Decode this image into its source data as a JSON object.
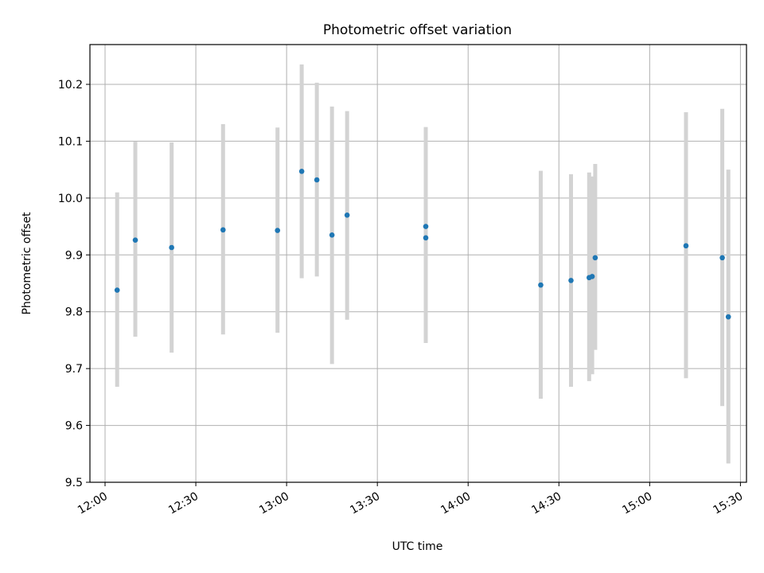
{
  "chart_data": {
    "type": "scatter",
    "title": "Photometric offset variation",
    "xlabel": "UTC time",
    "ylabel": "Photometric offset",
    "xlim": [
      "11:55",
      "15:32"
    ],
    "ylim": [
      9.5,
      10.27
    ],
    "grid": true,
    "x_ticks": [
      "12:00",
      "12:30",
      "13:00",
      "13:30",
      "14:00",
      "14:30",
      "15:00",
      "15:30"
    ],
    "y_ticks": [
      9.5,
      9.6,
      9.7,
      9.8,
      9.9,
      10.0,
      10.1,
      10.2
    ],
    "y_tick_labels": [
      "9.5",
      "9.6",
      "9.7",
      "9.8",
      "9.9",
      "10.0",
      "10.1",
      "10.2"
    ],
    "colors": {
      "marker": "#1f77b4",
      "errorbar": "#d3d3d3",
      "grid": "#b0b0b0"
    },
    "points": [
      {
        "x": "12:04",
        "y": 9.838,
        "err_low": 9.668,
        "err_high": 10.01
      },
      {
        "x": "12:10",
        "y": 9.926,
        "err_low": 9.756,
        "err_high": 10.099
      },
      {
        "x": "12:22",
        "y": 9.913,
        "err_low": 9.728,
        "err_high": 10.098
      },
      {
        "x": "12:39",
        "y": 9.944,
        "err_low": 9.76,
        "err_high": 10.13
      },
      {
        "x": "12:57",
        "y": 9.943,
        "err_low": 9.763,
        "err_high": 10.124
      },
      {
        "x": "13:05",
        "y": 10.047,
        "err_low": 9.859,
        "err_high": 10.235
      },
      {
        "x": "13:10",
        "y": 10.032,
        "err_low": 9.862,
        "err_high": 10.203
      },
      {
        "x": "13:15",
        "y": 9.935,
        "err_low": 9.708,
        "err_high": 10.161
      },
      {
        "x": "13:20",
        "y": 9.97,
        "err_low": 9.786,
        "err_high": 10.153
      },
      {
        "x": "13:46",
        "y": 9.95,
        "err_low": 9.78,
        "err_high": 10.125
      },
      {
        "x": "13:46",
        "y": 9.93,
        "err_low": 9.745,
        "err_high": 10.116
      },
      {
        "x": "14:24",
        "y": 9.847,
        "err_low": 9.647,
        "err_high": 10.048
      },
      {
        "x": "14:34",
        "y": 9.855,
        "err_low": 9.668,
        "err_high": 10.042
      },
      {
        "x": "14:40",
        "y": 9.86,
        "err_low": 9.678,
        "err_high": 10.045
      },
      {
        "x": "14:41",
        "y": 9.862,
        "err_low": 9.69,
        "err_high": 10.038
      },
      {
        "x": "14:42",
        "y": 9.895,
        "err_low": 9.733,
        "err_high": 10.06
      },
      {
        "x": "15:12",
        "y": 9.916,
        "err_low": 9.683,
        "err_high": 10.151
      },
      {
        "x": "15:24",
        "y": 9.895,
        "err_low": 9.634,
        "err_high": 10.157
      },
      {
        "x": "15:26",
        "y": 9.791,
        "err_low": 9.533,
        "err_high": 10.05
      }
    ]
  }
}
